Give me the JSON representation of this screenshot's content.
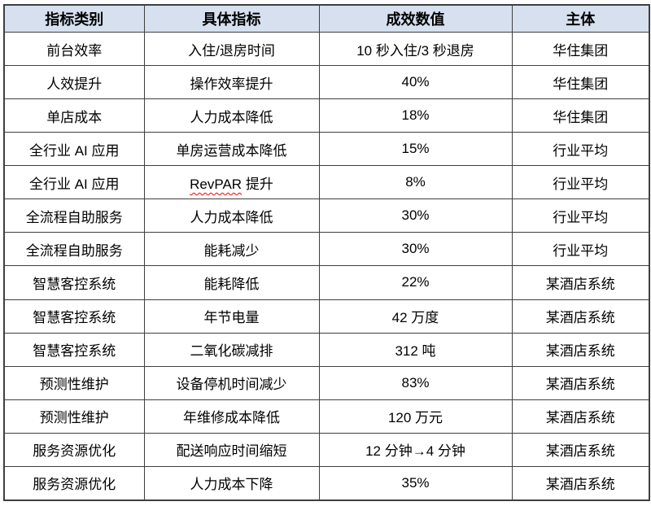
{
  "table": {
    "headers": [
      "指标类别",
      "具体指标",
      "成效数值",
      "主体"
    ],
    "rows": [
      {
        "category": "前台效率",
        "indicator": "入住/退房时间",
        "value": "10 秒入住/3 秒退房",
        "subject": "华住集团"
      },
      {
        "category": "人效提升",
        "indicator": "操作效率提升",
        "value": "40%",
        "subject": "华住集团"
      },
      {
        "category": "单店成本",
        "indicator": "人力成本降低",
        "value": "18%",
        "subject": "华住集团"
      },
      {
        "category": "全行业 AI 应用",
        "indicator": "单房运营成本降低",
        "value": "15%",
        "subject": "行业平均"
      },
      {
        "category": "全行业 AI 应用",
        "indicator": "RevPAR 提升",
        "value": "8%",
        "subject": "行业平均",
        "spell_error_token": "RevPAR"
      },
      {
        "category": "全流程自助服务",
        "indicator": "人力成本降低",
        "value": "30%",
        "subject": "行业平均"
      },
      {
        "category": "全流程自助服务",
        "indicator": "能耗减少",
        "value": "30%",
        "subject": "行业平均"
      },
      {
        "category": "智慧客控系统",
        "indicator": "能耗降低",
        "value": "22%",
        "subject": "某酒店系统"
      },
      {
        "category": "智慧客控系统",
        "indicator": "年节电量",
        "value": "42 万度",
        "subject": "某酒店系统"
      },
      {
        "category": "智慧客控系统",
        "indicator": "二氧化碳减排",
        "value": "312 吨",
        "subject": "某酒店系统"
      },
      {
        "category": "预测性维护",
        "indicator": "设备停机时间减少",
        "value": "83%",
        "subject": "某酒店系统"
      },
      {
        "category": "预测性维护",
        "indicator": "年维修成本降低",
        "value": "120 万元",
        "subject": "某酒店系统"
      },
      {
        "category": "服务资源优化",
        "indicator": "配送响应时间缩短",
        "value": "12 分钟→4 分钟",
        "subject": "某酒店系统"
      },
      {
        "category": "服务资源优化",
        "indicator": "人力成本下降",
        "value": "35%",
        "subject": "某酒店系统"
      }
    ],
    "colors": {
      "header_bg": "#d6e0ef",
      "border": "#3f3f3f",
      "spell_underline": "#ff0000"
    }
  }
}
